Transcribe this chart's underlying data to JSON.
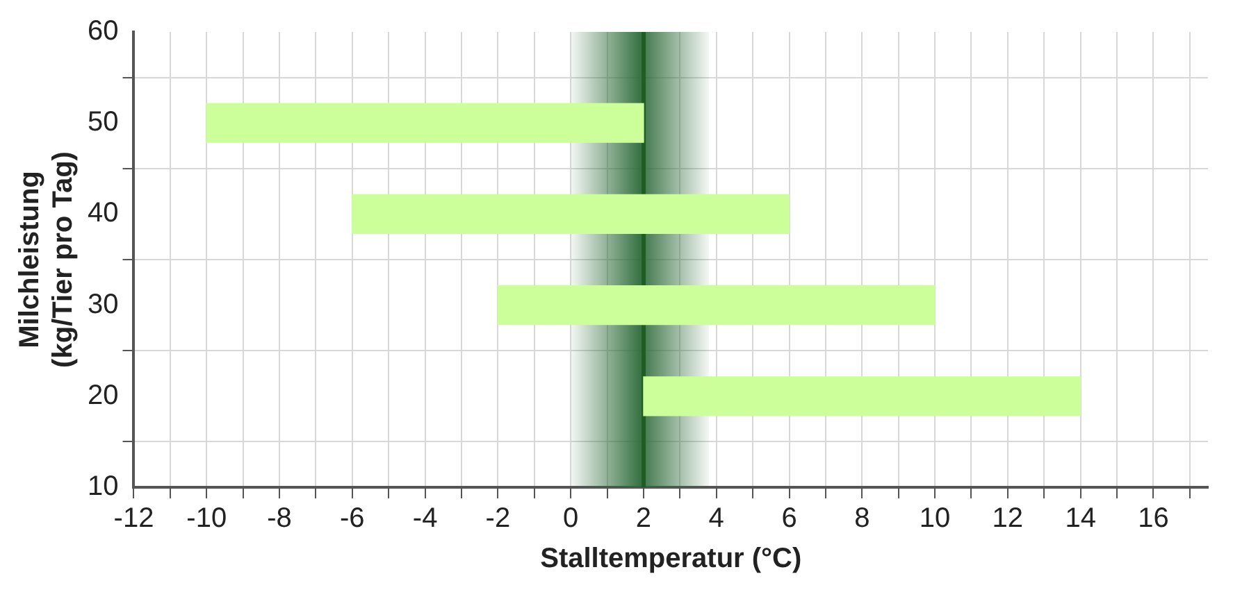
{
  "chart_data": {
    "type": "bar",
    "orientation": "horizontal",
    "xlabel": "Stalltemperatur (°C)",
    "ylabel": "Milchleistung\n(kg/Tier pro Tag)",
    "x": [
      50,
      40,
      30,
      20
    ],
    "base": [
      -10,
      -6,
      -2,
      2
    ],
    "values": [
      12,
      12,
      12,
      12
    ],
    "color": "#ccff99",
    "xlim": [
      -12,
      17.5
    ],
    "xticks": [
      -12,
      {
        "value": -11,
        "label": null
      },
      -10,
      {
        "value": -9,
        "label": null
      },
      -8,
      {
        "value": -7,
        "label": null
      },
      -6,
      {
        "value": -5,
        "label": null
      },
      -4,
      {
        "value": -3,
        "label": null
      },
      -2,
      {
        "value": -1,
        "label": null
      },
      0,
      {
        "value": 1,
        "label": null
      },
      2,
      {
        "value": 3,
        "label": null
      },
      4,
      {
        "value": 5,
        "label": null
      },
      6,
      {
        "value": 7,
        "label": null
      },
      8,
      {
        "value": 9,
        "label": null
      },
      10,
      {
        "value": 11,
        "label": null
      },
      12,
      {
        "value": 13,
        "label": null
      },
      14,
      {
        "value": 15,
        "label": null
      },
      16,
      {
        "value": 17,
        "label": null
      }
    ],
    "ylim": [
      10,
      60
    ],
    "yticks": [
      10,
      20,
      30,
      40,
      50,
      60
    ],
    "grid": true,
    "legend": false,
    "ref_lines": [
      {
        "axis": "x",
        "value": 2,
        "color": "#1e5e23"
      }
    ],
    "bands": [
      {
        "axis": "x",
        "from": 0,
        "to": 3.8,
        "color": "#2e6b3a"
      }
    ]
  }
}
